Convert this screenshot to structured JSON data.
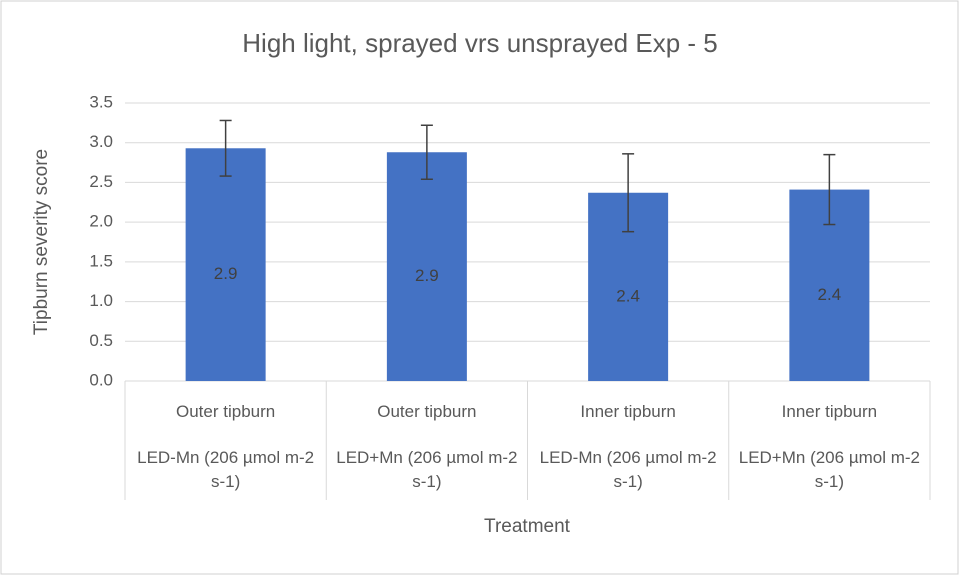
{
  "chart_data": {
    "type": "bar",
    "title": "High light, sprayed vrs unsprayed Exp - 5",
    "y_label": "Tipburn severity score",
    "x_label": "Treatment",
    "categories": [
      "Outer tipburn",
      "Outer tipburn",
      "Inner tipburn",
      "Inner tipburn"
    ],
    "sub_categories": [
      "LED-Mn (206 µmol m-2 s-1)",
      "LED+Mn (206 µmol m-2 s-1)",
      "LED-Mn (206 µmol m-2 s-1)",
      "LED+Mn (206 µmol m-2 s-1)"
    ],
    "values": [
      2.93,
      2.88,
      2.37,
      2.41
    ],
    "value_labels": [
      "2.9",
      "2.9",
      "2.4",
      "2.4"
    ],
    "errors": [
      0.35,
      0.34,
      0.49,
      0.44
    ],
    "color": "#4472c4",
    "ylim": [
      0,
      3.5
    ],
    "yticks": [
      {
        "value": 0,
        "label": "0.0"
      },
      0.5,
      {
        "value": 1,
        "label": "1.0"
      },
      1.5,
      {
        "value": 2,
        "label": "2.0"
      },
      2.5,
      {
        "value": 3,
        "label": "3.0"
      },
      3.5
    ],
    "grid": true
  }
}
